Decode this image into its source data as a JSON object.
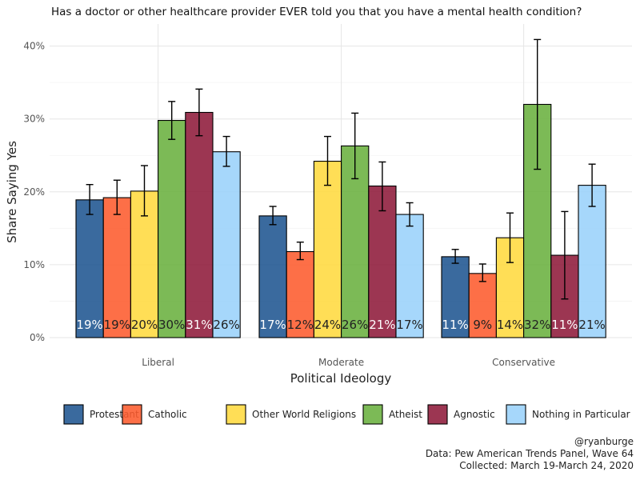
{
  "chart_data": {
    "type": "bar",
    "title": "Has a doctor or other healthcare provider EVER told you that you have a mental health condition?",
    "xlabel": "Political Ideology",
    "ylabel": "Share Saying Yes",
    "categories": [
      "Liberal",
      "Moderate",
      "Conservative"
    ],
    "ylim": [
      0,
      42
    ],
    "yticks": [
      0,
      10,
      20,
      30,
      40
    ],
    "ytick_labels": [
      "0%",
      "10%",
      "20%",
      "30%",
      "40%"
    ],
    "grid": true,
    "legend_position": "bottom",
    "series": [
      {
        "name": "Protestant",
        "color": "#1f5591",
        "values": [
          18.9,
          16.7,
          11.1
        ],
        "ci_low": [
          16.9,
          15.5,
          10.2
        ],
        "ci_high": [
          21.0,
          18.0,
          12.1
        ],
        "labels": [
          "19%",
          "17%",
          "11%"
        ],
        "label_color": "#ffffff"
      },
      {
        "name": "Catholic",
        "color": "#fd5b2e",
        "values": [
          19.2,
          11.8,
          8.8
        ],
        "ci_low": [
          16.9,
          10.7,
          7.7
        ],
        "ci_high": [
          21.6,
          13.1,
          10.1
        ],
        "labels": [
          "19%",
          "12%",
          "9%"
        ],
        "label_color": "#222222"
      },
      {
        "name": "Other World Religions",
        "color": "#ffd93f",
        "values": [
          20.1,
          24.2,
          13.7
        ],
        "ci_low": [
          16.7,
          20.9,
          10.3
        ],
        "ci_high": [
          23.6,
          27.6,
          17.1
        ],
        "labels": [
          "20%",
          "24%",
          "14%"
        ],
        "label_color": "#222222"
      },
      {
        "name": "Atheist",
        "color": "#6ab03f",
        "values": [
          29.8,
          26.3,
          32.0
        ],
        "ci_low": [
          27.2,
          21.8,
          23.1
        ],
        "ci_high": [
          32.4,
          30.8,
          40.9
        ],
        "labels": [
          "30%",
          "26%",
          "32%"
        ],
        "label_color": "#222222"
      },
      {
        "name": "Agnostic",
        "color": "#8e1a3a",
        "values": [
          30.9,
          20.8,
          11.3
        ],
        "ci_low": [
          27.7,
          17.4,
          5.3
        ],
        "ci_high": [
          34.1,
          24.1,
          17.3
        ],
        "labels": [
          "31%",
          "21%",
          "11%"
        ],
        "label_color": "#ffffff"
      },
      {
        "name": "Nothing in Particular",
        "color": "#9ad2fb",
        "values": [
          25.5,
          16.9,
          20.9
        ],
        "ci_low": [
          23.5,
          15.3,
          18.0
        ],
        "ci_high": [
          27.6,
          18.5,
          23.8
        ],
        "labels": [
          "26%",
          "17%",
          "21%"
        ],
        "label_color": "#222222"
      }
    ]
  },
  "caption": {
    "line1": "@ryanburge",
    "line2": "Data: Pew American Trends Panel, Wave 64",
    "line3": "Collected: March 19-March 24, 2020"
  }
}
